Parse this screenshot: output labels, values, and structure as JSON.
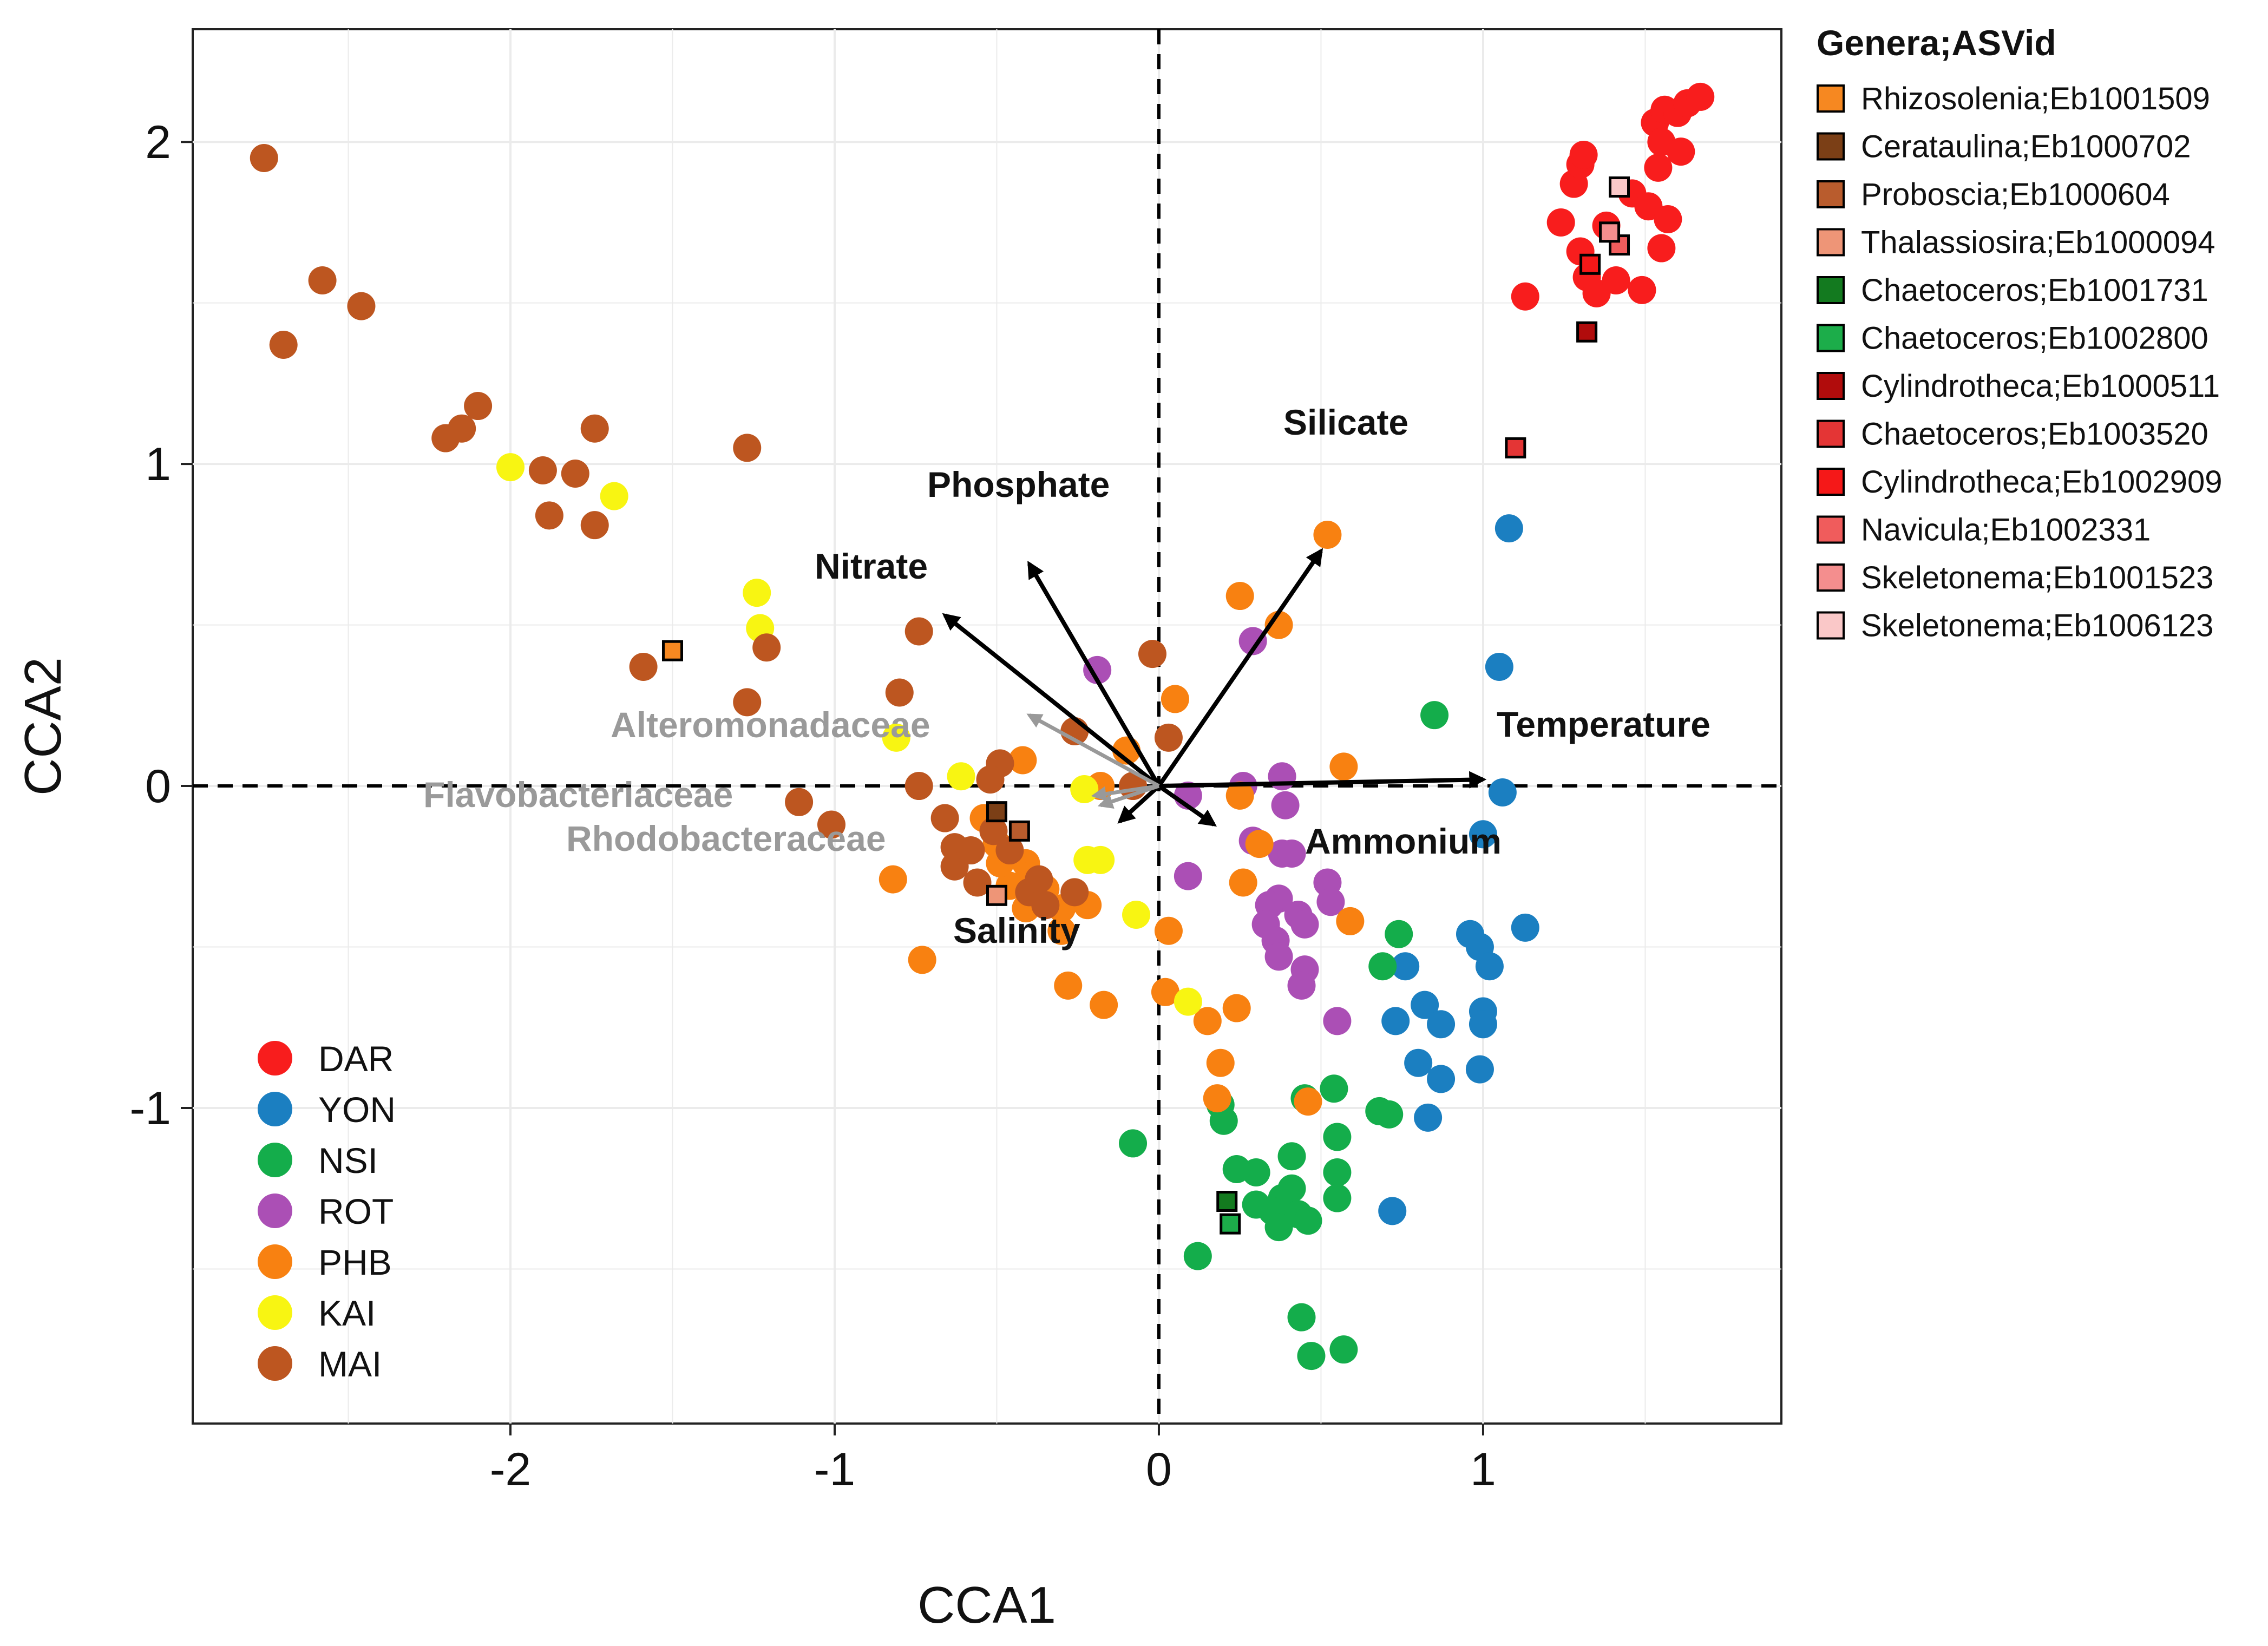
{
  "chart_data": {
    "type": "scatter",
    "title": "",
    "xlabel": "CCA1",
    "ylabel": "CCA2",
    "xlim": [
      -2.98,
      1.92
    ],
    "ylim": [
      -1.98,
      2.35
    ],
    "xticks": [
      -2,
      -1,
      0,
      1
    ],
    "yticks": [
      -1,
      0,
      1,
      2
    ],
    "xtick_labels": [
      "-2",
      "-1",
      "0",
      "1"
    ],
    "ytick_labels": [
      "-1",
      "0",
      "1",
      "2"
    ],
    "grid": true,
    "zero_lines": true,
    "sites": [
      {
        "name": "DAR",
        "color": "#f81d1d",
        "points": [
          [
            1.13,
            1.52
          ],
          [
            1.24,
            1.75
          ],
          [
            1.28,
            1.87
          ],
          [
            1.3,
            1.66
          ],
          [
            1.3,
            1.93
          ],
          [
            1.31,
            1.96
          ],
          [
            1.32,
            1.58
          ],
          [
            1.35,
            1.53
          ],
          [
            1.38,
            1.74
          ],
          [
            1.41,
            1.57
          ],
          [
            1.46,
            1.84
          ],
          [
            1.49,
            1.54
          ],
          [
            1.51,
            1.8
          ],
          [
            1.54,
            1.92
          ],
          [
            1.55,
            1.67
          ],
          [
            1.57,
            1.76
          ],
          [
            1.53,
            2.06
          ],
          [
            1.56,
            2.1
          ],
          [
            1.6,
            2.09
          ],
          [
            1.63,
            2.12
          ],
          [
            1.67,
            2.14
          ],
          [
            1.55,
            2.0
          ],
          [
            1.61,
            1.97
          ]
        ]
      },
      {
        "name": "YON",
        "color": "#1b7fc1",
        "points": [
          [
            1.08,
            0.8
          ],
          [
            1.05,
            0.37
          ],
          [
            1.06,
            -0.02
          ],
          [
            1.0,
            -0.15
          ],
          [
            0.96,
            -0.46
          ],
          [
            0.99,
            -0.5
          ],
          [
            1.02,
            -0.56
          ],
          [
            1.13,
            -0.44
          ],
          [
            0.76,
            -0.56
          ],
          [
            0.82,
            -0.68
          ],
          [
            0.87,
            -0.74
          ],
          [
            1.0,
            -0.7
          ],
          [
            1.0,
            -0.74
          ],
          [
            0.73,
            -0.73
          ],
          [
            0.8,
            -0.86
          ],
          [
            0.87,
            -0.91
          ],
          [
            0.99,
            -0.88
          ],
          [
            0.83,
            -1.03
          ],
          [
            0.72,
            -1.32
          ]
        ]
      },
      {
        "name": "NSI",
        "color": "#14ad4b",
        "points": [
          [
            0.85,
            0.22
          ],
          [
            0.74,
            -0.46
          ],
          [
            0.69,
            -0.56
          ],
          [
            0.54,
            -0.94
          ],
          [
            0.45,
            -0.97
          ],
          [
            0.68,
            -1.01
          ],
          [
            0.71,
            -1.02
          ],
          [
            0.55,
            -1.09
          ],
          [
            0.41,
            -1.15
          ],
          [
            0.3,
            -1.2
          ],
          [
            0.55,
            -1.2
          ],
          [
            0.55,
            -1.28
          ],
          [
            0.41,
            -1.25
          ],
          [
            0.38,
            -1.28
          ],
          [
            0.3,
            -1.3
          ],
          [
            0.35,
            -1.32
          ],
          [
            0.43,
            -1.33
          ],
          [
            0.46,
            -1.35
          ],
          [
            0.37,
            -1.37
          ],
          [
            0.19,
            -0.99
          ],
          [
            0.2,
            -1.04
          ],
          [
            0.24,
            -1.19
          ],
          [
            -0.08,
            -1.11
          ],
          [
            0.12,
            -1.46
          ],
          [
            0.44,
            -1.65
          ],
          [
            0.47,
            -1.77
          ],
          [
            0.57,
            -1.75
          ]
        ]
      },
      {
        "name": "ROT",
        "color": "#ab4fb5",
        "points": [
          [
            -0.19,
            0.36
          ],
          [
            0.29,
            0.45
          ],
          [
            0.09,
            -0.03
          ],
          [
            0.26,
            0.0
          ],
          [
            0.38,
            0.03
          ],
          [
            0.39,
            -0.06
          ],
          [
            0.29,
            -0.17
          ],
          [
            0.38,
            -0.21
          ],
          [
            0.41,
            -0.21
          ],
          [
            0.52,
            -0.3
          ],
          [
            0.53,
            -0.36
          ],
          [
            0.43,
            -0.4
          ],
          [
            0.37,
            -0.35
          ],
          [
            0.34,
            -0.37
          ],
          [
            0.45,
            -0.43
          ],
          [
            0.33,
            -0.43
          ],
          [
            0.36,
            -0.48
          ],
          [
            0.37,
            -0.53
          ],
          [
            0.45,
            -0.57
          ],
          [
            0.44,
            -0.62
          ],
          [
            0.55,
            -0.73
          ],
          [
            0.09,
            -0.28
          ]
        ]
      },
      {
        "name": "PHB",
        "color": "#f88111",
        "points": [
          [
            0.52,
            0.78
          ],
          [
            0.25,
            0.59
          ],
          [
            0.37,
            0.5
          ],
          [
            0.05,
            0.27
          ],
          [
            -0.42,
            0.08
          ],
          [
            -0.18,
            0.0
          ],
          [
            -0.1,
            0.11
          ],
          [
            0.57,
            0.06
          ],
          [
            -0.54,
            -0.1
          ],
          [
            -0.5,
            -0.18
          ],
          [
            -0.41,
            -0.24
          ],
          [
            -0.4,
            -0.28
          ],
          [
            -0.46,
            -0.31
          ],
          [
            -0.35,
            -0.32
          ],
          [
            -0.3,
            -0.45
          ],
          [
            -0.22,
            -0.37
          ],
          [
            -0.49,
            -0.24
          ],
          [
            -0.82,
            -0.29
          ],
          [
            -0.73,
            -0.54
          ],
          [
            -0.28,
            -0.62
          ],
          [
            -0.17,
            -0.68
          ],
          [
            0.02,
            -0.64
          ],
          [
            0.24,
            -0.69
          ],
          [
            0.15,
            -0.73
          ],
          [
            0.19,
            -0.86
          ],
          [
            0.18,
            -0.97
          ],
          [
            0.46,
            -0.98
          ],
          [
            0.59,
            -0.42
          ],
          [
            0.03,
            -0.45
          ],
          [
            -0.41,
            -0.38
          ],
          [
            -0.3,
            -0.38
          ],
          [
            0.31,
            -0.18
          ],
          [
            0.26,
            -0.3
          ],
          [
            0.25,
            -0.03
          ]
        ]
      },
      {
        "name": "KAI",
        "color": "#f8f512",
        "points": [
          [
            -2.0,
            0.99
          ],
          [
            -1.68,
            0.9
          ],
          [
            -1.24,
            0.6
          ],
          [
            -1.23,
            0.49
          ],
          [
            -0.81,
            0.15
          ],
          [
            -0.61,
            0.03
          ],
          [
            -0.23,
            -0.01
          ],
          [
            -0.22,
            -0.23
          ],
          [
            -0.18,
            -0.23
          ],
          [
            -0.07,
            -0.4
          ],
          [
            0.09,
            -0.67
          ]
        ]
      },
      {
        "name": "MAI",
        "color": "#bd5620",
        "points": [
          [
            -2.76,
            1.95
          ],
          [
            -2.7,
            1.37
          ],
          [
            -2.58,
            1.57
          ],
          [
            -2.46,
            1.49
          ],
          [
            -2.2,
            1.08
          ],
          [
            -2.15,
            1.11
          ],
          [
            -2.1,
            1.18
          ],
          [
            -1.9,
            0.98
          ],
          [
            -1.88,
            0.84
          ],
          [
            -1.8,
            0.97
          ],
          [
            -1.74,
            1.11
          ],
          [
            -1.74,
            0.81
          ],
          [
            -1.27,
            1.05
          ],
          [
            -1.59,
            0.37
          ],
          [
            -1.27,
            0.26
          ],
          [
            -1.21,
            0.43
          ],
          [
            -0.74,
            0.48
          ],
          [
            -0.8,
            0.29
          ],
          [
            -0.74,
            0.0
          ],
          [
            -0.66,
            -0.1
          ],
          [
            -0.63,
            -0.19
          ],
          [
            -0.63,
            -0.25
          ],
          [
            -0.58,
            -0.2
          ],
          [
            -0.51,
            -0.14
          ],
          [
            -0.46,
            -0.2
          ],
          [
            -0.56,
            -0.3
          ],
          [
            -0.4,
            -0.33
          ],
          [
            -0.49,
            0.07
          ],
          [
            -0.52,
            0.02
          ],
          [
            -0.26,
            0.17
          ],
          [
            -0.08,
            0.0
          ],
          [
            -0.02,
            0.41
          ],
          [
            0.03,
            0.15
          ],
          [
            -0.35,
            -0.37
          ],
          [
            -1.11,
            -0.05
          ],
          [
            -1.01,
            -0.12
          ],
          [
            -0.37,
            -0.29
          ],
          [
            -0.26,
            -0.33
          ]
        ]
      }
    ],
    "taxa": [
      {
        "name": "Rhizosolenia;Eb1001509",
        "color": "#f68821",
        "x": -1.5,
        "y": 0.42
      },
      {
        "name": "Cerataulina;Eb1000702",
        "color": "#7b3f16",
        "x": -0.5,
        "y": -0.08
      },
      {
        "name": "Proboscia;Eb1000604",
        "color": "#b95c2d",
        "x": -0.43,
        "y": -0.14
      },
      {
        "name": "Thalassiosira;Eb1000094",
        "color": "#ee9577",
        "x": -0.5,
        "y": -0.34
      },
      {
        "name": "Chaetoceros;Eb1001731",
        "color": "#137a1f",
        "x": 0.21,
        "y": -1.29
      },
      {
        "name": "Chaetoceros;Eb1002800",
        "color": "#1cad4a",
        "x": 0.22,
        "y": -1.36
      },
      {
        "name": "Cylindrotheca;Eb1000511",
        "color": "#b10c0c",
        "x": 1.32,
        "y": 1.41
      },
      {
        "name": "Chaetoceros;Eb1003520",
        "color": "#e43535",
        "x": 1.1,
        "y": 1.05
      },
      {
        "name": "Cylindrotheca;Eb1002909",
        "color": "#f51818",
        "x": 1.33,
        "y": 1.62
      },
      {
        "name": "Navicula;Eb1002331",
        "color": "#f05c5c",
        "x": 1.42,
        "y": 1.68
      },
      {
        "name": "Skeletonema;Eb1001523",
        "color": "#f48e8e",
        "x": 1.39,
        "y": 1.72
      },
      {
        "name": "Skeletonema;Eb1006123",
        "color": "#fac8c8",
        "x": 1.42,
        "y": 1.86
      }
    ],
    "vectors": [
      {
        "name": "Temperature",
        "x": 1.0,
        "y": 0.02,
        "color": "#000000"
      },
      {
        "name": "Silicate",
        "x": 0.5,
        "y": 0.73,
        "color": "#000000"
      },
      {
        "name": "Phosphate",
        "x": -0.4,
        "y": 0.69,
        "color": "#000000"
      },
      {
        "name": "Nitrate",
        "x": -0.66,
        "y": 0.53,
        "color": "#000000"
      },
      {
        "name": "Ammonium",
        "x": 0.17,
        "y": -0.12,
        "color": "#000000"
      },
      {
        "name": "Salinity",
        "x": -0.12,
        "y": -0.11,
        "color": "#000000"
      },
      {
        "name": "Alteromonadaceae",
        "x": -0.4,
        "y": 0.22,
        "color": "#999999"
      },
      {
        "name": "Flavobacteriaceae",
        "x": -0.2,
        "y": -0.03,
        "color": "#999999"
      },
      {
        "name": "Rhodobacteraceae",
        "x": -0.18,
        "y": -0.06,
        "color": "#999999"
      }
    ],
    "legend": {
      "taxa_title": "Genera;ASVid",
      "taxa_position": "right",
      "sites_position": "bottom-left"
    }
  }
}
